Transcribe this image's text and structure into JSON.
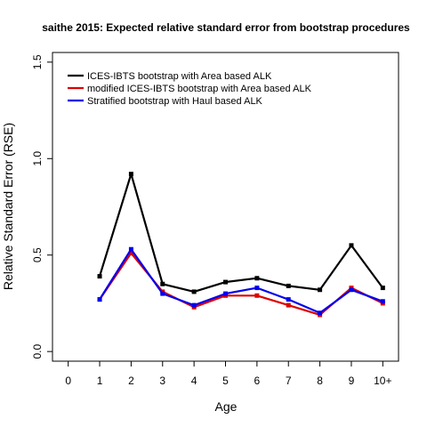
{
  "chart_data": {
    "type": "line",
    "title": "saithe 2015: Expected relative standard error from bootstrap procedures",
    "xlabel": "Age",
    "ylabel": "Relative Standard Error (RSE)",
    "categories": [
      "0",
      "1",
      "2",
      "3",
      "4",
      "5",
      "6",
      "7",
      "8",
      "9",
      "10+"
    ],
    "x": [
      0,
      1,
      2,
      3,
      4,
      5,
      6,
      7,
      8,
      9,
      10
    ],
    "xlim": [
      -0.5,
      10.5
    ],
    "ylim": [
      -0.05,
      1.55
    ],
    "yticks": [
      0.0,
      0.5,
      1.0,
      1.5
    ],
    "ytick_labels": [
      "0.0",
      "0.5",
      "1.0",
      "1.5"
    ],
    "grid": false,
    "legend_position": "top-left",
    "series": [
      {
        "name": "ICES-IBTS bootstrap with Area based ALK",
        "color": "#000000",
        "x": [
          1,
          2,
          3,
          4,
          5,
          6,
          7,
          8,
          9,
          10
        ],
        "values": [
          0.39,
          0.92,
          0.35,
          0.31,
          0.36,
          0.38,
          0.34,
          0.32,
          0.55,
          0.33
        ]
      },
      {
        "name": "modified ICES-IBTS bootstrap with Area based ALK",
        "color": "#dd0000",
        "x": [
          1,
          2,
          3,
          4,
          5,
          6,
          7,
          8,
          9,
          10
        ],
        "values": [
          0.27,
          0.51,
          0.31,
          0.23,
          0.29,
          0.29,
          0.24,
          0.19,
          0.33,
          0.25
        ]
      },
      {
        "name": "Stratified bootstrap with Haul based ALK",
        "color": "#0000ee",
        "x": [
          1,
          2,
          3,
          4,
          5,
          6,
          7,
          8,
          9,
          10
        ],
        "values": [
          0.27,
          0.53,
          0.3,
          0.24,
          0.3,
          0.33,
          0.27,
          0.2,
          0.32,
          0.26
        ]
      }
    ]
  }
}
